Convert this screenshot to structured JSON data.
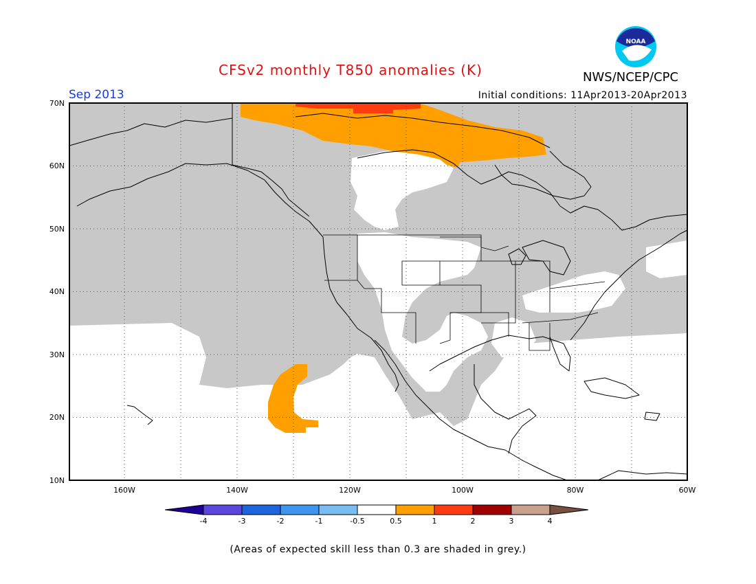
{
  "header": {
    "title": "CFSv2 monthly T850 anomalies (K)",
    "agency": "NWS/NCEP/CPC",
    "logo_text": "NOAA",
    "month": "Sep 2013",
    "initial_conditions": "Initial conditions: 11Apr2013-20Apr2013"
  },
  "map": {
    "lon_range": [
      -172,
      -60
    ],
    "lat_range": [
      10,
      70
    ],
    "lat_labels": [
      "70N",
      "60N",
      "50N",
      "40N",
      "30N",
      "20N",
      "10N"
    ],
    "lon_labels": [
      "160W",
      "140W",
      "120W",
      "100W",
      "80W",
      "60W"
    ],
    "colors": {
      "skill_grey": "#c8c8c8",
      "neutral": "#ffffff",
      "anom_0_5_1": "#ffa000",
      "anom_1_2": "#ff3c10",
      "coast": "#000000"
    }
  },
  "colorbar": {
    "colors": [
      "#1e0096",
      "#5a46dc",
      "#1e64dc",
      "#3c96f0",
      "#78bef5",
      "#ffffff",
      "#ffa000",
      "#ff3c10",
      "#a00000",
      "#c8a08c",
      "#785040"
    ],
    "tick_labels": [
      "-4",
      "-3",
      "-2",
      "-1",
      "-0.5",
      "0.5",
      "1",
      "2",
      "3",
      "4"
    ]
  },
  "footer": {
    "note": "(Areas of expected skill less than 0.3 are shaded in grey.)"
  }
}
